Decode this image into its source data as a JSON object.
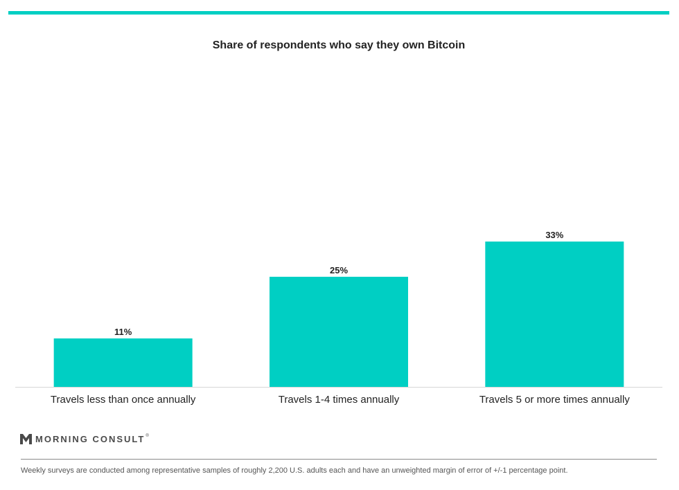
{
  "colors": {
    "accent": "#00cfc3",
    "text": "#222222",
    "axis": "#d6d6d6"
  },
  "chart_data": {
    "type": "bar",
    "title": "Share of respondents who say they own Bitcoin",
    "categories": [
      "Travels less than once annually",
      "Travels 1-4 times annually",
      "Travels 5 or more times annually"
    ],
    "values": [
      11,
      25,
      33
    ],
    "value_labels": [
      "11%",
      "25%",
      "33%"
    ],
    "xlabel": "",
    "ylabel": "",
    "ylim": [
      0,
      66
    ],
    "grid": false,
    "legend": "none"
  },
  "branding": {
    "logo_text": "MORNING CONSULT",
    "logo_registered": "®",
    "logo_icon": "morning-consult-m-icon"
  },
  "footnote": "Weekly surveys are conducted among representative samples of roughly 2,200 U.S. adults each and have an unweighted margin of error of +/-1 percentage point."
}
